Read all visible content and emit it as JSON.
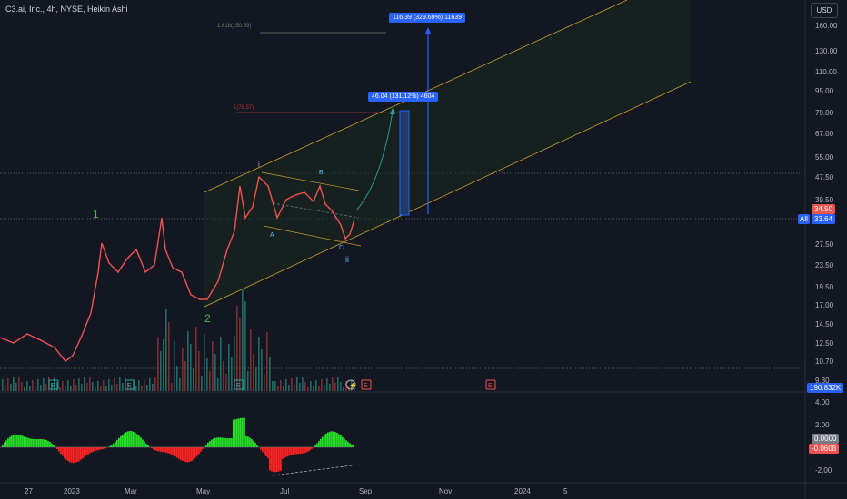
{
  "title": "C3.ai, Inc., 4h, NYSE, Heikin Ashi",
  "currency_button": "USD",
  "price_axis": [
    "160.00",
    "130.00",
    "110.00",
    "95.00",
    "79.00",
    "67.00",
    "55.00",
    "47.50",
    "39.50",
    "27.50",
    "23.50",
    "19.50",
    "17.00",
    "14.50",
    "12.50",
    "10.70",
    "9.30"
  ],
  "osc_axis": [
    "4.00",
    "2.00",
    "-2.00"
  ],
  "time_axis": [
    "27",
    "2023",
    "Mar",
    "May",
    "Jul",
    "Sep",
    "Nov",
    "2024",
    "5"
  ],
  "badges": {
    "price_red": "34.50",
    "all_tag": "All",
    "price_blue": "33.64",
    "volume": "190.832K",
    "osc_zero": "0.0000",
    "osc_value": "-0.0608"
  },
  "fib_labels": {
    "f1618": "1.618(150.59)",
    "f1": "1(78.57)"
  },
  "callouts": {
    "big": "116.39 (329.69%) 11639",
    "small": "46.04 (131.12%) 4604"
  },
  "wave_labels": {
    "w1": "1",
    "w2": "2",
    "wi": "i",
    "wii": "ii",
    "wA": "A",
    "wB": "B",
    "wC": "C"
  },
  "event_markers": [
    "E",
    "E",
    "E",
    "E",
    "E"
  ],
  "colors": {
    "bg": "#131722",
    "up": "#26a69a",
    "down": "#ef5350",
    "channel": "#c9a227",
    "blue": "#2962ff",
    "green_label": "#4caf50"
  }
}
